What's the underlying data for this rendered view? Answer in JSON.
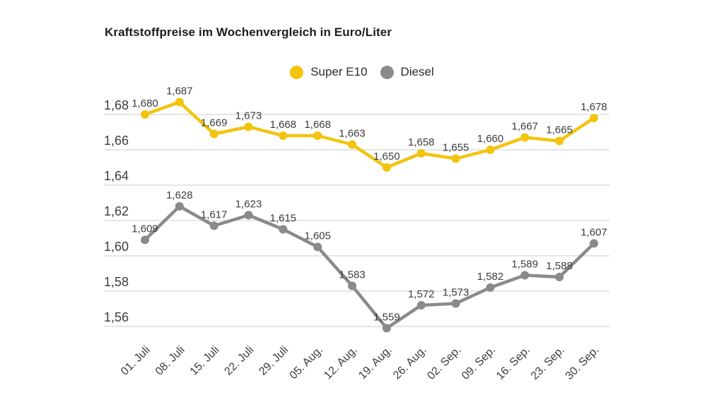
{
  "title": "Kraftstoffpreise im Wochenvergleich in Euro/Liter",
  "legend": {
    "items": [
      {
        "label": "Super E10",
        "color": "#f2c40e"
      },
      {
        "label": "Diesel",
        "color": "#8a8a8a"
      }
    ]
  },
  "colors": {
    "background": "#ffffff",
    "grid": "#cccccc",
    "title_text": "#1d1d1b",
    "axis_text": "#3d3d3d",
    "data_label_text": "#3c3c3c",
    "super_e10": "#f2c40e",
    "diesel": "#8a8a8a"
  },
  "chart_data": {
    "type": "line",
    "title": "Kraftstoffpreise im Wochenvergleich in Euro/Liter",
    "xlabel": "",
    "ylabel": "Euro/Liter",
    "grid": true,
    "legend_position": "top-center",
    "ylim": [
      1.55,
      1.69
    ],
    "categories": [
      "01. Juli",
      "08. Juli",
      "15. Juli",
      "22. Juli",
      "29. Juli",
      "05. Aug.",
      "12. Aug.",
      "19. Aug.",
      "26. Aug.",
      "02. Sep.",
      "09. Sep.",
      "16. Sep.",
      "23. Sep.",
      "30. Sep."
    ],
    "yticks": [
      {
        "value": 1.68,
        "label": "1,68"
      },
      {
        "value": 1.66,
        "label": "1,66"
      },
      {
        "value": 1.64,
        "label": "1,64"
      },
      {
        "value": 1.62,
        "label": "1,62"
      },
      {
        "value": 1.6,
        "label": "1,60"
      },
      {
        "value": 1.58,
        "label": "1,58"
      },
      {
        "value": 1.56,
        "label": "1,56"
      }
    ],
    "series": [
      {
        "name": "Super E10",
        "color": "#f2c40e",
        "values": [
          1.68,
          1.687,
          1.669,
          1.673,
          1.668,
          1.668,
          1.663,
          1.65,
          1.658,
          1.655,
          1.66,
          1.667,
          1.665,
          1.678
        ],
        "labels": [
          "1,680",
          "1,687",
          "1,669",
          "1,673",
          "1,668",
          "1,668",
          "1,663",
          "1,650",
          "1,658",
          "1,655",
          "1,660",
          "1,667",
          "1,665",
          "1,678"
        ]
      },
      {
        "name": "Diesel",
        "color": "#8a8a8a",
        "values": [
          1.609,
          1.628,
          1.617,
          1.623,
          1.615,
          1.605,
          1.583,
          1.559,
          1.572,
          1.573,
          1.582,
          1.589,
          1.588,
          1.607
        ],
        "labels": [
          "1,609",
          "1,628",
          "1,617",
          "1,623",
          "1,615",
          "1,605",
          "1,583",
          "1,559",
          "1,572",
          "1,573",
          "1,582",
          "1,589",
          "1,588",
          "1,607"
        ]
      }
    ]
  }
}
